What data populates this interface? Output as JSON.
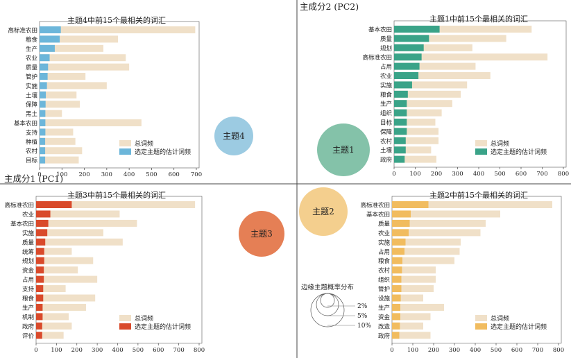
{
  "axes": {
    "pc1": "主成分1 (PC1)",
    "pc2": "主成分2 (PC2)"
  },
  "bubbles": [
    {
      "label": "主题4",
      "color": "#9ccbe2"
    },
    {
      "label": "主题1",
      "color": "#84c2a9"
    },
    {
      "label": "主题3",
      "color": "#e57f55"
    },
    {
      "label": "主题2",
      "color": "#f4cf8e"
    }
  ],
  "size_legend": {
    "title": "边缘主题概率分布",
    "labels": [
      "2%",
      "5%",
      "10%"
    ]
  },
  "colors": {
    "total": "#f0e0c8",
    "topic4": "#6cb6da",
    "topic1": "#3aa388",
    "topic3": "#d94a2b",
    "topic2": "#f1bc5f"
  },
  "chart_data": [
    {
      "type": "bar",
      "title": "主题4中前15个最相关的词汇",
      "legend": [
        "总词频",
        "选定主题的估计词频"
      ],
      "categories": [
        "高标准农田",
        "粮食",
        "生产",
        "农业",
        "质量",
        "管护",
        "实施",
        "土壤",
        "保障",
        "黑土",
        "基本农田",
        "支持",
        "种植",
        "农村",
        "目标"
      ],
      "total": [
        695,
        350,
        285,
        385,
        400,
        205,
        300,
        165,
        180,
        100,
        455,
        150,
        160,
        190,
        175
      ],
      "selected": [
        95,
        90,
        68,
        45,
        38,
        36,
        33,
        28,
        27,
        26,
        26,
        26,
        25,
        25,
        25
      ],
      "xlim": [
        0,
        700
      ],
      "xticks": [
        0,
        100,
        200,
        300,
        400,
        500,
        600,
        700
      ]
    },
    {
      "type": "bar",
      "title": "主题1中前15个最相关的词汇",
      "legend": [
        "总词频",
        "选定主题的估计词频"
      ],
      "categories": [
        "基本农田",
        "质量",
        "规划",
        "高标准农田",
        "占用",
        "农业",
        "实施",
        "粮食",
        "生产",
        "组织",
        "目标",
        "保障",
        "农村",
        "土壤",
        "政府"
      ],
      "total": [
        650,
        530,
        370,
        725,
        385,
        455,
        345,
        315,
        275,
        225,
        195,
        210,
        210,
        175,
        200
      ],
      "selected": [
        215,
        165,
        140,
        130,
        120,
        115,
        85,
        65,
        60,
        60,
        60,
        60,
        55,
        55,
        50
      ],
      "xlim": [
        0,
        800
      ],
      "xticks": [
        0,
        100,
        200,
        300,
        400,
        500,
        600,
        700,
        800
      ]
    },
    {
      "type": "bar",
      "title": "主题3中前15个最相关的词汇",
      "legend": [
        "总词频",
        "选定主题的估计词频"
      ],
      "categories": [
        "高标准农田",
        "农业",
        "基本农田",
        "实施",
        "质量",
        "统筹",
        "规划",
        "资金",
        "占用",
        "支持",
        "粮食",
        "生产",
        "机制",
        "政府",
        "评价"
      ],
      "total": [
        780,
        410,
        495,
        330,
        425,
        175,
        280,
        205,
        300,
        145,
        290,
        245,
        160,
        175,
        135
      ],
      "selected": [
        175,
        70,
        60,
        55,
        45,
        40,
        40,
        38,
        38,
        35,
        35,
        32,
        32,
        30,
        30
      ],
      "xlim": [
        0,
        800
      ],
      "xticks": [
        0,
        100,
        200,
        300,
        400,
        500,
        600,
        700,
        800
      ]
    },
    {
      "type": "bar",
      "title": "主题2中前15个最相关的词汇",
      "legend": [
        "总词频",
        "选定主题的估计词频"
      ],
      "categories": [
        "高标准农田",
        "基本农田",
        "质量",
        "农业",
        "实施",
        "占用",
        "粮食",
        "农村",
        "组织",
        "管护",
        "设施",
        "生产",
        "资金",
        "改造",
        "政府"
      ],
      "total": [
        770,
        520,
        450,
        425,
        330,
        325,
        300,
        210,
        210,
        200,
        150,
        250,
        185,
        150,
        185
      ],
      "selected": [
        175,
        90,
        85,
        80,
        65,
        60,
        50,
        48,
        45,
        45,
        42,
        40,
        40,
        38,
        35
      ],
      "xlim": [
        0,
        800
      ],
      "xticks": [
        0,
        100,
        200,
        300,
        400,
        500,
        600,
        700,
        800
      ]
    }
  ]
}
